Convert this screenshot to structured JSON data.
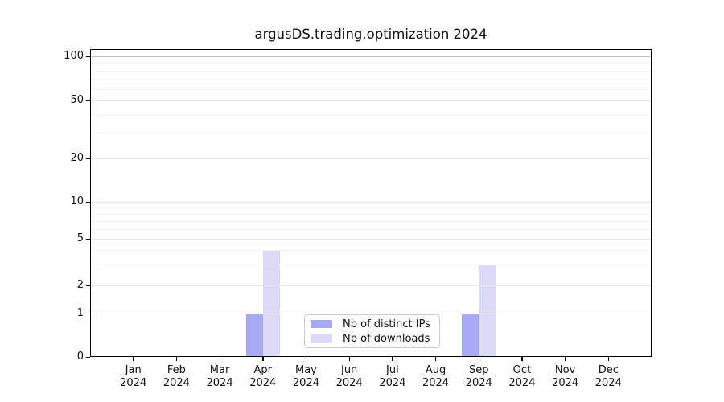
{
  "chart_data": {
    "type": "bar",
    "title": "argusDS.trading.optimization 2024",
    "categories": [
      "Jan",
      "Feb",
      "Mar",
      "Apr",
      "May",
      "Jun",
      "Jul",
      "Aug",
      "Sep",
      "Oct",
      "Nov",
      "Dec"
    ],
    "category_year": "2024",
    "series": [
      {
        "name": "Nb of distinct IPs",
        "color": "#a9a9f3",
        "values": [
          0,
          0,
          0,
          1,
          0,
          0,
          0,
          0,
          1,
          0,
          0,
          0
        ]
      },
      {
        "name": "Nb of downloads",
        "color": "#dbdbf7",
        "values": [
          0,
          0,
          0,
          4,
          0,
          0,
          0,
          0,
          3,
          0,
          0,
          0
        ]
      }
    ],
    "yticks": [
      0,
      1,
      2,
      5,
      10,
      20,
      50,
      100
    ],
    "ylim": [
      0,
      100
    ],
    "yscale": "log-with-zero",
    "xlabel": "",
    "ylabel": "",
    "grid": "horizontal major and minor",
    "legend_position": "lower center inside"
  },
  "legend": {
    "items": [
      {
        "label": "Nb of distinct IPs",
        "color": "#a9a9f3"
      },
      {
        "label": "Nb of downloads",
        "color": "#dbdbf7"
      }
    ]
  }
}
